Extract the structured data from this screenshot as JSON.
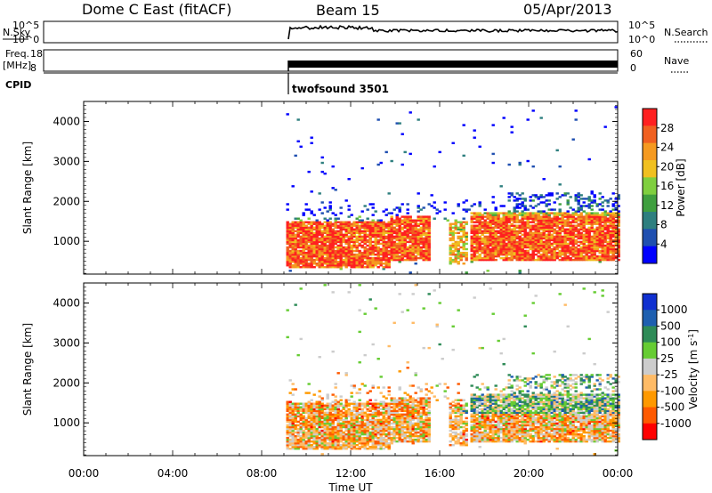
{
  "header": {
    "title": "Dome C East (fitACF)",
    "beam": "Beam 15",
    "date": "05/Apr/2013"
  },
  "nsky_panel": {
    "label": "N.Sky",
    "ticks_left": [
      "10^5",
      "10^0"
    ],
    "ticks_right": [
      "10^5",
      "10^0"
    ],
    "right_label": "N.Search"
  },
  "freq_panel": {
    "label_line1": "Freq.",
    "label_line2": "[MHz]",
    "ticks_left": [
      "18",
      "8"
    ],
    "ticks_right": [
      "60",
      "0"
    ],
    "right_label": "Nave"
  },
  "cpid": {
    "label": "CPID",
    "program": "twofsound 3501"
  },
  "x_axis": {
    "label": "Time UT",
    "ticks": [
      "00:00",
      "04:00",
      "08:00",
      "12:00",
      "16:00",
      "20:00",
      "00:00"
    ]
  },
  "colors": {
    "power_scale": [
      "#0000ff",
      "#1f4fb0",
      "#2e7f7f",
      "#3f9f3f",
      "#7fcf3f",
      "#f0c020",
      "#f59a20",
      "#f06020",
      "#ff2020"
    ],
    "velocity_scale": [
      "#ff0000",
      "#ff5a00",
      "#ff9900",
      "#ffbb66",
      "#cccccc",
      "#66cc33",
      "#2e8b57",
      "#1e5fb0",
      "#1030d0"
    ]
  },
  "chart_data": [
    {
      "type": "heatmap",
      "name": "power",
      "ylabel": "Slant Range [km]",
      "y_ticks": [
        1000,
        2000,
        3000,
        4000
      ],
      "ylim": [
        180,
        4500
      ],
      "xlim_hours": [
        0,
        24
      ],
      "data_start_hour": 9.1,
      "colorbar": {
        "label": "Power [dB]",
        "ticks": [
          4,
          8,
          12,
          16,
          20,
          24,
          28
        ],
        "range": [
          0,
          32
        ]
      },
      "echo_regions": [
        {
          "t0": 9.1,
          "t1": 13.7,
          "r0": 300,
          "r1": 1500,
          "level": "strong"
        },
        {
          "t0": 13.7,
          "t1": 15.5,
          "r0": 500,
          "r1": 1600,
          "level": "strong"
        },
        {
          "t0": 16.3,
          "t1": 17.2,
          "r0": 400,
          "r1": 1500,
          "level": "medium"
        },
        {
          "t0": 17.3,
          "t1": 24.0,
          "r0": 500,
          "r1": 1700,
          "level": "strong"
        },
        {
          "t0": 19.0,
          "t1": 24.0,
          "r0": 1700,
          "r1": 2200,
          "level": "weak"
        }
      ]
    },
    {
      "type": "heatmap",
      "name": "velocity",
      "ylabel": "Slant Range [km]",
      "y_ticks": [
        1000,
        2000,
        3000,
        4000
      ],
      "ylim": [
        180,
        4500
      ],
      "xlim_hours": [
        0,
        24
      ],
      "data_start_hour": 9.1,
      "colorbar": {
        "label": "Velocity [m s^-1]",
        "ticks": [
          "-1000",
          "-500",
          "-100",
          "-25",
          "25",
          "100",
          "500",
          "1000"
        ]
      }
    }
  ]
}
